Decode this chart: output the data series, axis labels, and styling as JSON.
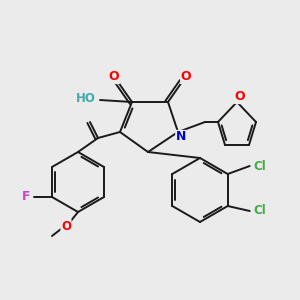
{
  "background_color": "#ebebeb",
  "bond_color": "#1a1a1a",
  "atom_colors": {
    "O": "#ff0000",
    "N": "#0000cc",
    "F": "#cc44cc",
    "Cl": "#44aa44",
    "HO": "#44aaaa",
    "C": "#1a1a1a"
  },
  "figsize": [
    3.0,
    3.0
  ],
  "dpi": 100
}
